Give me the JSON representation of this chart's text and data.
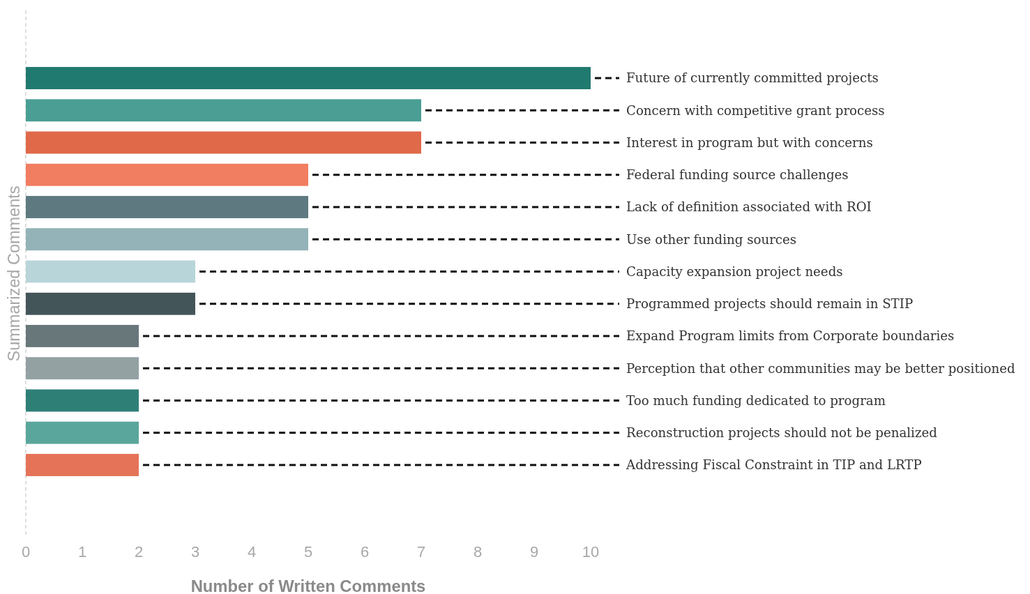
{
  "chart_data": {
    "type": "bar",
    "orientation": "horizontal",
    "xlabel": "Number of Written Comments",
    "ylabel": "Summarized Comments",
    "categories": [
      "Future of currently committed projects",
      "Concern with competitive grant process",
      "Interest in program but with concerns",
      "Federal funding source challenges",
      "Lack of definition associated with ROI",
      "Use other funding sources",
      "Capacity expansion project needs",
      "Programmed projects should remain in STIP",
      "Expand Program limits from Corporate boundaries",
      "Perception that other communities may be better positioned",
      "Too much funding dedicated to program",
      "Reconstruction projects should not be penalized",
      "Addressing Fiscal Constraint in TIP and LRTP"
    ],
    "values": [
      10,
      7,
      7,
      5,
      5,
      5,
      3,
      3,
      2,
      2,
      2,
      2,
      2
    ],
    "colors": [
      "#217a6f",
      "#4a9e94",
      "#e0694a",
      "#f27e61",
      "#5e7a80",
      "#93b3b8",
      "#b8d5da",
      "#44555a",
      "#68777a",
      "#93a1a3",
      "#2e8077",
      "#5ba69c",
      "#e57358"
    ],
    "xlim": [
      0,
      10
    ],
    "xticks": [
      0,
      1,
      2,
      3,
      4,
      5,
      6,
      7,
      8,
      9,
      10
    ]
  }
}
